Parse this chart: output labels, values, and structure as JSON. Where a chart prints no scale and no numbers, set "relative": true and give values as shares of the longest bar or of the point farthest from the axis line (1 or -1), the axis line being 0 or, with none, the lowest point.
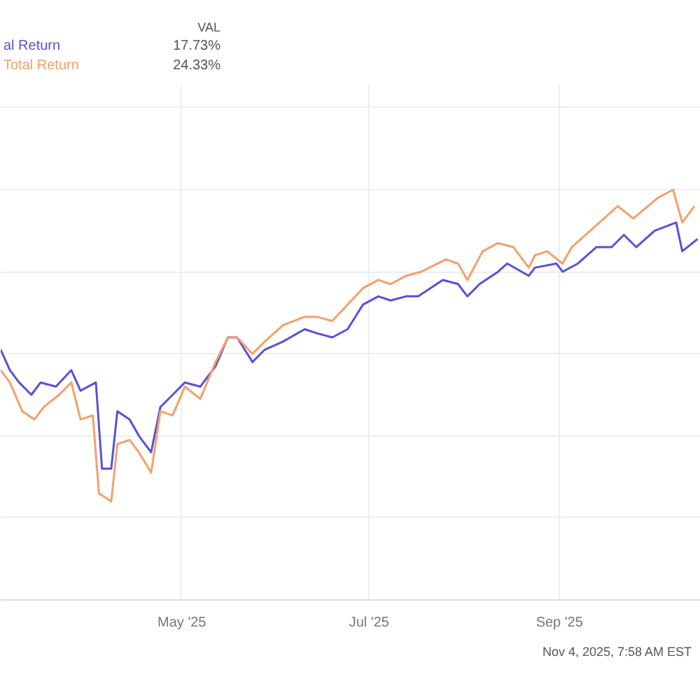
{
  "chart_data": {
    "type": "line",
    "relative": true,
    "grid": true,
    "line_style": "solid",
    "annotations": [
      "VAL",
      "17.73%",
      "24.33%",
      "Nov 4, 2025, 7:58 AM EST"
    ],
    "xlim": [
      "2025-03-03",
      "2025-10-17"
    ],
    "xticks": [
      {
        "value": "2025-05-01",
        "label": "May '25"
      },
      {
        "value": "2025-07-01",
        "label": "Jul '25"
      },
      {
        "value": "2025-09-01",
        "label": "Sep '25"
      }
    ],
    "series": [
      {
        "name": "al Return",
        "color": "#5b4fd9",
        "x": [
          "2025-03-03",
          "2025-03-06",
          "2025-03-09",
          "2025-03-13",
          "2025-03-16",
          "2025-03-21",
          "2025-03-26",
          "2025-03-29",
          "2025-04-03",
          "2025-04-05",
          "2025-04-08",
          "2025-04-10",
          "2025-04-14",
          "2025-04-17",
          "2025-04-21",
          "2025-04-24",
          "2025-04-28",
          "2025-05-02",
          "2025-05-07",
          "2025-05-12",
          "2025-05-16",
          "2025-05-19",
          "2025-05-24",
          "2025-05-28",
          "2025-06-03",
          "2025-06-10",
          "2025-06-14",
          "2025-06-19",
          "2025-06-24",
          "2025-06-29",
          "2025-07-04",
          "2025-07-08",
          "2025-07-13",
          "2025-07-17",
          "2025-07-25",
          "2025-07-30",
          "2025-08-02",
          "2025-08-06",
          "2025-08-12",
          "2025-08-15",
          "2025-08-22",
          "2025-08-24",
          "2025-08-31",
          "2025-09-02",
          "2025-09-07",
          "2025-09-13",
          "2025-09-18",
          "2025-09-22",
          "2025-09-26",
          "2025-10-02",
          "2025-10-09",
          "2025-10-11",
          "2025-10-16"
        ],
        "values": [
          0.61,
          0.56,
          0.53,
          0.5,
          0.53,
          0.52,
          0.56,
          0.51,
          0.53,
          0.32,
          0.32,
          0.46,
          0.44,
          0.4,
          0.36,
          0.47,
          0.5,
          0.53,
          0.52,
          0.57,
          0.64,
          0.64,
          0.58,
          0.61,
          0.63,
          0.66,
          0.65,
          0.64,
          0.66,
          0.72,
          0.74,
          0.73,
          0.74,
          0.74,
          0.78,
          0.77,
          0.74,
          0.77,
          0.8,
          0.82,
          0.79,
          0.81,
          0.82,
          0.8,
          0.82,
          0.86,
          0.86,
          0.89,
          0.86,
          0.9,
          0.92,
          0.85,
          0.88
        ]
      },
      {
        "name": "Total Return",
        "color": "#f5a06a",
        "x": [
          "2025-03-03",
          "2025-03-06",
          "2025-03-10",
          "2025-03-14",
          "2025-03-17",
          "2025-03-22",
          "2025-03-26",
          "2025-03-29",
          "2025-04-02",
          "2025-04-04",
          "2025-04-08",
          "2025-04-10",
          "2025-04-14",
          "2025-04-17",
          "2025-04-21",
          "2025-04-24",
          "2025-04-28",
          "2025-05-02",
          "2025-05-07",
          "2025-05-12",
          "2025-05-16",
          "2025-05-19",
          "2025-05-24",
          "2025-05-28",
          "2025-06-03",
          "2025-06-10",
          "2025-06-14",
          "2025-06-19",
          "2025-06-24",
          "2025-06-29",
          "2025-07-04",
          "2025-07-08",
          "2025-07-13",
          "2025-07-18",
          "2025-07-26",
          "2025-07-30",
          "2025-08-02",
          "2025-08-07",
          "2025-08-12",
          "2025-08-17",
          "2025-08-22",
          "2025-08-24",
          "2025-08-28",
          "2025-09-02",
          "2025-09-05",
          "2025-09-11",
          "2025-09-20",
          "2025-09-25",
          "2025-10-03",
          "2025-10-08",
          "2025-10-11",
          "2025-10-15"
        ],
        "values": [
          0.56,
          0.53,
          0.46,
          0.44,
          0.47,
          0.5,
          0.53,
          0.44,
          0.45,
          0.26,
          0.24,
          0.38,
          0.39,
          0.36,
          0.31,
          0.46,
          0.45,
          0.52,
          0.49,
          0.58,
          0.64,
          0.64,
          0.6,
          0.63,
          0.67,
          0.69,
          0.69,
          0.68,
          0.72,
          0.76,
          0.78,
          0.77,
          0.79,
          0.8,
          0.83,
          0.82,
          0.78,
          0.85,
          0.87,
          0.86,
          0.81,
          0.84,
          0.85,
          0.82,
          0.86,
          0.9,
          0.96,
          0.93,
          0.98,
          1.0,
          0.92,
          0.96
        ]
      }
    ]
  }
}
